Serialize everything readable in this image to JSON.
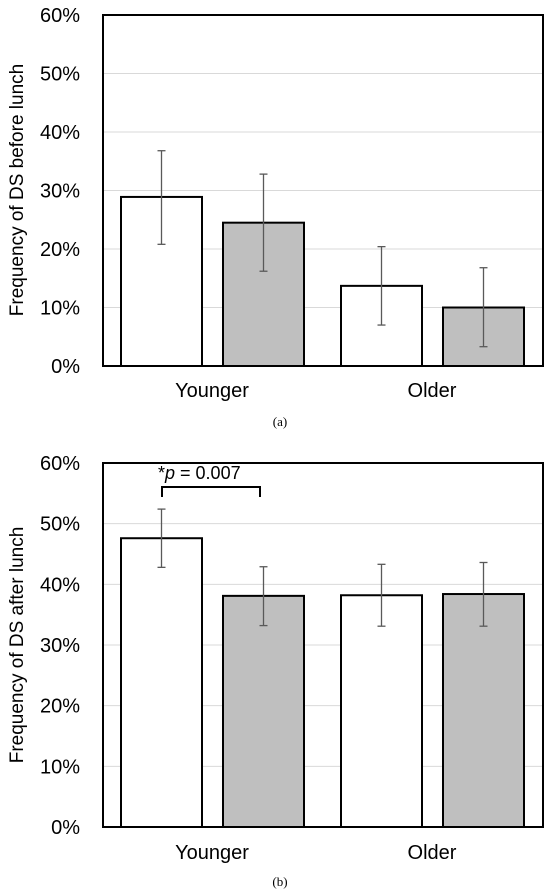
{
  "colors": {
    "series_a": "#ffffff",
    "series_b": "#bfbfbf",
    "grid": "#d9d9d9",
    "bar_edge": "#000000",
    "error_bar": "#595959"
  },
  "chart_data": [
    {
      "type": "bar",
      "caption": "(a)",
      "ylabel": "Frequency of DS before lunch",
      "categories": [
        "Younger",
        "Older"
      ],
      "ylim": [
        0,
        60
      ],
      "yticks": [
        "0%",
        "10%",
        "20%",
        "30%",
        "40%",
        "50%",
        "60%"
      ],
      "grid": true,
      "series": [
        {
          "values": [
            28.9,
            13.7
          ],
          "err_low": [
            20.8,
            7.0
          ],
          "err_high": [
            36.8,
            20.4
          ]
        },
        {
          "values": [
            24.5,
            10.0
          ],
          "err_low": [
            16.2,
            3.3
          ],
          "err_high": [
            32.8,
            16.8
          ]
        }
      ]
    },
    {
      "type": "bar",
      "caption": "(b)",
      "ylabel": "Frequency of DS after lunch",
      "categories": [
        "Younger",
        "Older"
      ],
      "ylim": [
        0,
        60
      ],
      "yticks": [
        "0%",
        "10%",
        "20%",
        "30%",
        "40%",
        "50%",
        "60%"
      ],
      "grid": true,
      "series": [
        {
          "values": [
            47.6,
            38.2
          ],
          "err_low": [
            42.8,
            33.1
          ],
          "err_high": [
            52.4,
            43.3
          ]
        },
        {
          "values": [
            38.1,
            38.4
          ],
          "err_low": [
            33.2,
            33.1
          ],
          "err_high": [
            42.9,
            43.6
          ]
        }
      ],
      "annotation": {
        "star": "*",
        "p_letter": "p",
        "rest": " = 0.007"
      }
    }
  ]
}
